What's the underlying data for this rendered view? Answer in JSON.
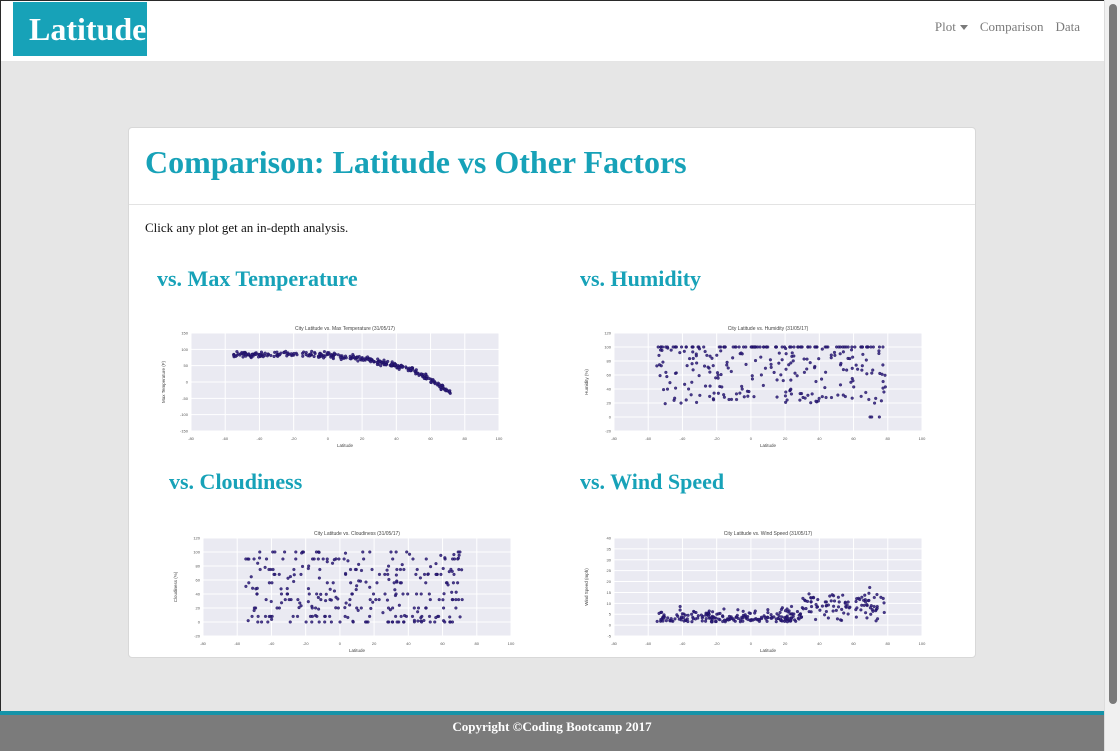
{
  "navbar": {
    "brand": "Latitude",
    "links": [
      {
        "label": "Plot",
        "dropdown": true
      },
      {
        "label": "Comparison",
        "dropdown": false
      },
      {
        "label": "Data",
        "dropdown": false
      }
    ]
  },
  "page": {
    "title": "Comparison: Latitude vs Other Factors",
    "intro": "Click any plot get an in-depth analysis."
  },
  "plots": [
    {
      "heading": "vs. Max Temperature",
      "chart_data": {
        "type": "scatter",
        "title": "City Latitude vs. Max Temperature (31/05/17)",
        "xlabel": "Latitude",
        "ylabel": "Max Temperature (F)",
        "xlim": [
          -80,
          100
        ],
        "ylim": [
          -150,
          150
        ],
        "xticks": [
          -80,
          -60,
          -40,
          -20,
          0,
          20,
          40,
          60,
          80,
          100
        ],
        "yticks": [
          -150,
          -100,
          -50,
          0,
          50,
          100,
          150
        ],
        "pattern": "temp"
      }
    },
    {
      "heading": "vs. Humidity",
      "chart_data": {
        "type": "scatter",
        "title": "City Latitude vs. Humidity (31/05/17)",
        "xlabel": "Latitude",
        "ylabel": "Humidity (%)",
        "xlim": [
          -80,
          100
        ],
        "ylim": [
          -20,
          120
        ],
        "xticks": [
          -80,
          -60,
          -40,
          -20,
          0,
          20,
          40,
          60,
          80,
          100
        ],
        "yticks": [
          -20,
          0,
          20,
          40,
          60,
          80,
          100,
          120
        ],
        "pattern": "humidity"
      }
    },
    {
      "heading": "vs. Cloudiness",
      "chart_data": {
        "type": "scatter",
        "title": "City Latitude vs. Cloudiness (31/05/17)",
        "xlabel": "Latitude",
        "ylabel": "Cloudiness (%)",
        "xlim": [
          -80,
          100
        ],
        "ylim": [
          -20,
          120
        ],
        "xticks": [
          -80,
          -60,
          -40,
          -20,
          0,
          20,
          40,
          60,
          80,
          100
        ],
        "yticks": [
          -20,
          0,
          20,
          40,
          60,
          80,
          100,
          120
        ],
        "pattern": "cloud"
      }
    },
    {
      "heading": "vs. Wind Speed",
      "chart_data": {
        "type": "scatter",
        "title": "City Latitude vs. Wind Speed (31/05/17)",
        "xlabel": "Latitude",
        "ylabel": "Wind Speed (mph)",
        "xlim": [
          -80,
          100
        ],
        "ylim": [
          -5,
          40
        ],
        "xticks": [
          -80,
          -60,
          -40,
          -20,
          0,
          20,
          40,
          60,
          80,
          100
        ],
        "yticks": [
          -5,
          0,
          5,
          10,
          15,
          20,
          25,
          30,
          35,
          40
        ],
        "pattern": "wind"
      }
    }
  ],
  "footer": {
    "text": "Copyright ©Coding Bootcamp 2017"
  },
  "colors": {
    "accent": "#17a2b8",
    "point": "#2b1a7a",
    "plot_bg": "#eaeaf2"
  }
}
